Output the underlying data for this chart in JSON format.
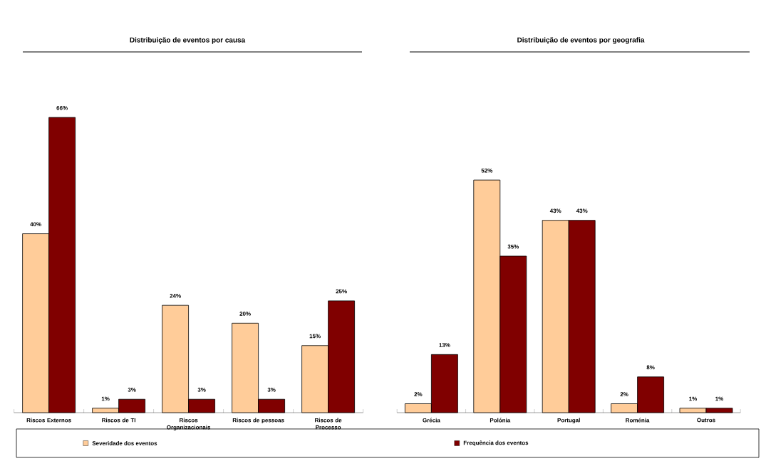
{
  "chart_data": [
    {
      "type": "bar",
      "title": "Distribuição de eventos por causa",
      "categories": [
        "Riscos Externos",
        "Riscos de TI",
        "Riscos Organizacionais",
        "Riscos de pessoas",
        "Riscos de Processo"
      ],
      "legend": "bottom",
      "series": [
        {
          "name": "Severidade dos eventos",
          "color": "#ffcc99",
          "values": [
            40,
            1,
            24,
            20,
            15
          ],
          "value_labels": [
            "40%",
            "1%",
            "24%",
            "20%",
            "15%"
          ]
        },
        {
          "name": "Frequência dos eventos",
          "color": "#800000",
          "values": [
            66,
            3,
            3,
            3,
            25
          ],
          "value_labels": [
            "66%",
            "3%",
            "3%",
            "3%",
            "25%"
          ]
        }
      ]
    },
    {
      "type": "bar",
      "title": "Distribuição de eventos por geografia",
      "categories": [
        "Grécia",
        "Polónia",
        "Portugal",
        "Roménia",
        "Outros"
      ],
      "series": [
        {
          "color": "#ffcc99",
          "values": [
            2,
            52,
            43,
            2,
            1
          ],
          "value_labels": [
            "2%",
            "52%",
            "43%",
            "2%",
            "1%"
          ]
        },
        {
          "color": "#800000",
          "values": [
            13,
            35,
            43,
            8,
            1
          ],
          "value_labels": [
            "13%",
            "35%",
            "43%",
            "8%",
            "1%"
          ]
        }
      ]
    }
  ]
}
